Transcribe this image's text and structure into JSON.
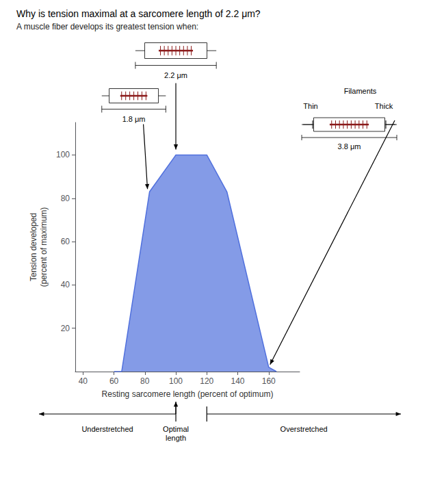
{
  "chart_data": {
    "type": "area",
    "title": "Why is tension maximal at a sarcomere length of 2.2 μm?",
    "subtitle": "A muscle fiber develops its greatest tension when:",
    "x": [
      60,
      65,
      83,
      100,
      120,
      133,
      160,
      165
    ],
    "values": [
      0,
      0,
      83,
      100,
      100,
      83,
      2,
      0
    ],
    "xlabel": "Resting sarcomere length (percent of optimum)",
    "ylabel": "Tension developed\n(percent of maximum)",
    "xlim": [
      35,
      180
    ],
    "ylim": [
      0,
      115
    ],
    "xticks": [
      40,
      60,
      80,
      100,
      120,
      140,
      160
    ],
    "yticks": [
      20,
      40,
      60,
      80,
      100
    ],
    "grid": false,
    "annotations": [
      "2.2 μm",
      "1.8 μm",
      "Filaments",
      "Thin",
      "Thick",
      "3.8 μm",
      "Understretched",
      "Optimal\nlength",
      "Overstretched"
    ]
  }
}
